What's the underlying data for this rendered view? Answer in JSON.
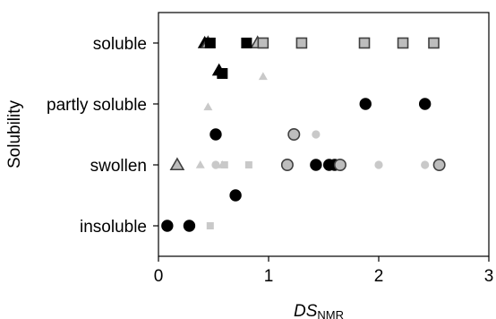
{
  "chart_data": {
    "type": "scatter",
    "xlabel_main": "DS",
    "xlabel_sub": "NMR",
    "ylabel": "Solubility",
    "xlim": [
      0,
      3
    ],
    "x_ticks": [
      "0",
      "1",
      "2",
      "3"
    ],
    "y_ticks": [
      "soluble",
      "partly soluble",
      "swollen",
      "insoluble"
    ],
    "grid": false,
    "legend": "none",
    "colors": {
      "black": "#000000",
      "gray": "#bdbdbd",
      "light_gray": "#c9c9c9",
      "outline": "#404040"
    },
    "series": [
      {
        "marker": "triangle",
        "fill": "black",
        "x": [
          0.42,
          0.55
        ],
        "y": [
          4.0,
          3.55
        ]
      },
      {
        "marker": "triangle",
        "fill": "gray-outlined",
        "x": [
          0.45,
          0.9,
          0.17
        ],
        "y": [
          4.0,
          4.0,
          2.0
        ]
      },
      {
        "marker": "triangle",
        "fill": "light_gray",
        "x": [
          0.95,
          0.45,
          0.38,
          0.58
        ],
        "y": [
          3.45,
          2.95,
          2.0,
          2.0
        ]
      },
      {
        "marker": "square",
        "fill": "black",
        "x": [
          0.47,
          0.8,
          0.58
        ],
        "y": [
          4.0,
          4.0,
          3.5
        ]
      },
      {
        "marker": "square",
        "fill": "gray-outlined",
        "x": [
          0.95,
          1.3,
          1.87,
          2.22,
          2.5
        ],
        "y": [
          4.0,
          4.0,
          4.0,
          4.0,
          4.0
        ]
      },
      {
        "marker": "square",
        "fill": "light_gray",
        "x": [
          0.6,
          0.82,
          0.47
        ],
        "y": [
          2.0,
          2.0,
          1.0
        ]
      },
      {
        "marker": "circle",
        "fill": "black",
        "x": [
          1.88,
          2.42,
          0.52,
          1.43,
          1.55,
          1.6,
          0.7,
          0.08,
          0.28
        ],
        "y": [
          3.0,
          3.0,
          2.5,
          2.0,
          2.0,
          2.0,
          1.5,
          1.0,
          1.0
        ]
      },
      {
        "marker": "circle",
        "fill": "gray-outlined",
        "x": [
          1.23,
          1.17,
          1.65,
          2.55
        ],
        "y": [
          2.5,
          2.0,
          2.0,
          2.0
        ]
      },
      {
        "marker": "circle",
        "fill": "light_gray",
        "x": [
          1.43,
          0.52,
          2.0,
          2.42
        ],
        "y": [
          2.5,
          2.0,
          2.0,
          2.0
        ]
      }
    ]
  }
}
